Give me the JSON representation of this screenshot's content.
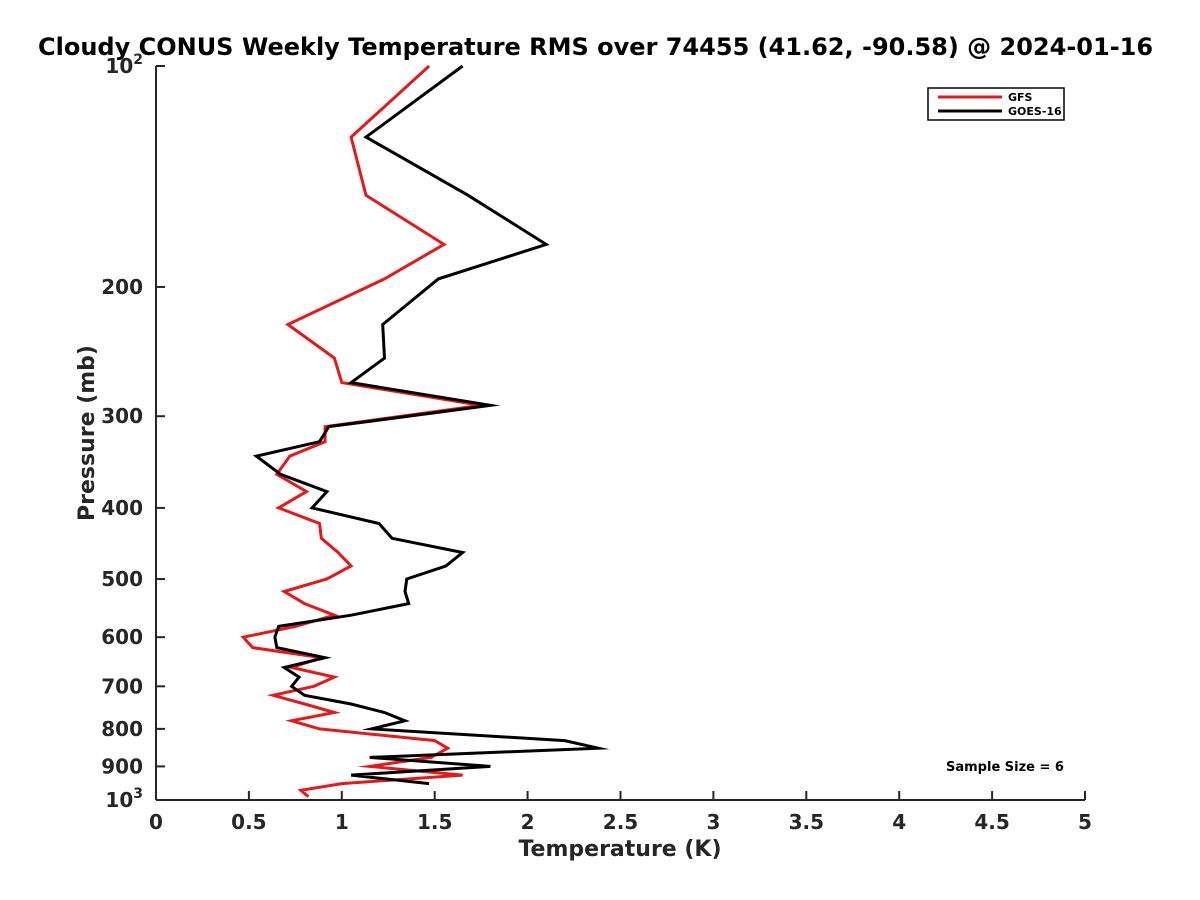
{
  "chart_data": {
    "type": "line",
    "title": "Cloudy CONUS Weekly Temperature RMS over 74455 (41.62, -90.58) @ 2024-01-16",
    "xlabel": "Temperature (K)",
    "ylabel": "Pressure (mb)",
    "xlim": [
      0,
      5
    ],
    "ylim": [
      100,
      1000
    ],
    "yscale": "log",
    "y_reversed": true,
    "grid": false,
    "legend_position": "top-right",
    "x_ticks": [
      {
        "value": 0,
        "label": "0"
      },
      {
        "value": 0.5,
        "label": "0.5"
      },
      {
        "value": 1,
        "label": "1"
      },
      {
        "value": 1.5,
        "label": "1.5"
      },
      {
        "value": 2,
        "label": "2"
      },
      {
        "value": 2.5,
        "label": "2.5"
      },
      {
        "value": 3,
        "label": "3"
      },
      {
        "value": 3.5,
        "label": "3.5"
      },
      {
        "value": 4,
        "label": "4"
      },
      {
        "value": 4.5,
        "label": "4.5"
      },
      {
        "value": 5,
        "label": "5"
      }
    ],
    "y_ticks": [
      {
        "value": 100,
        "base": "10",
        "exp": "2"
      },
      {
        "value": 200,
        "label": "200"
      },
      {
        "value": 300,
        "label": "300"
      },
      {
        "value": 400,
        "label": "400"
      },
      {
        "value": 500,
        "label": "500"
      },
      {
        "value": 600,
        "label": "600"
      },
      {
        "value": 700,
        "label": "700"
      },
      {
        "value": 800,
        "label": "800"
      },
      {
        "value": 900,
        "label": "900"
      },
      {
        "value": 1000,
        "base": "10",
        "exp": "3"
      }
    ],
    "series": [
      {
        "name": "GFS",
        "color": "#e31a1c",
        "points": [
          [
            1.47,
            100
          ],
          [
            1.05,
            125
          ],
          [
            1.13,
            150
          ],
          [
            1.55,
            175
          ],
          [
            1.23,
            195
          ],
          [
            0.71,
            225
          ],
          [
            0.96,
            250
          ],
          [
            1.0,
            270
          ],
          [
            1.75,
            290
          ],
          [
            0.91,
            310
          ],
          [
            0.91,
            325
          ],
          [
            0.72,
            340
          ],
          [
            0.65,
            360
          ],
          [
            0.81,
            380
          ],
          [
            0.66,
            400
          ],
          [
            0.88,
            420
          ],
          [
            0.89,
            440
          ],
          [
            0.98,
            460
          ],
          [
            1.05,
            480
          ],
          [
            0.92,
            500
          ],
          [
            0.69,
            520
          ],
          [
            0.8,
            540
          ],
          [
            0.96,
            560
          ],
          [
            0.75,
            580
          ],
          [
            0.47,
            600
          ],
          [
            0.52,
            620
          ],
          [
            0.89,
            640
          ],
          [
            0.73,
            660
          ],
          [
            0.96,
            680
          ],
          [
            0.85,
            700
          ],
          [
            0.63,
            720
          ],
          [
            0.8,
            740
          ],
          [
            0.96,
            760
          ],
          [
            0.73,
            780
          ],
          [
            0.88,
            800
          ],
          [
            1.5,
            830
          ],
          [
            1.57,
            850
          ],
          [
            1.48,
            875
          ],
          [
            1.15,
            900
          ],
          [
            1.65,
            925
          ],
          [
            1.0,
            950
          ],
          [
            0.78,
            970
          ],
          [
            0.82,
            990
          ]
        ]
      },
      {
        "name": "GOES-16",
        "color": "#000000",
        "points": [
          [
            1.65,
            100
          ],
          [
            1.13,
            125
          ],
          [
            1.68,
            150
          ],
          [
            2.1,
            175
          ],
          [
            1.52,
            195
          ],
          [
            1.22,
            225
          ],
          [
            1.23,
            250
          ],
          [
            1.05,
            270
          ],
          [
            1.8,
            290
          ],
          [
            0.93,
            310
          ],
          [
            0.88,
            325
          ],
          [
            0.54,
            340
          ],
          [
            0.67,
            360
          ],
          [
            0.92,
            380
          ],
          [
            0.84,
            400
          ],
          [
            1.2,
            420
          ],
          [
            1.27,
            440
          ],
          [
            1.65,
            460
          ],
          [
            1.56,
            480
          ],
          [
            1.35,
            500
          ],
          [
            1.34,
            520
          ],
          [
            1.36,
            540
          ],
          [
            1.05,
            560
          ],
          [
            0.66,
            580
          ],
          [
            0.64,
            600
          ],
          [
            0.65,
            620
          ],
          [
            0.91,
            640
          ],
          [
            0.69,
            660
          ],
          [
            0.77,
            680
          ],
          [
            0.73,
            700
          ],
          [
            0.8,
            720
          ],
          [
            1.05,
            740
          ],
          [
            1.23,
            760
          ],
          [
            1.34,
            780
          ],
          [
            1.16,
            800
          ],
          [
            2.2,
            830
          ],
          [
            2.38,
            850
          ],
          [
            1.15,
            875
          ],
          [
            1.8,
            900
          ],
          [
            1.05,
            925
          ],
          [
            1.47,
            950
          ]
        ]
      }
    ],
    "annotations": [
      {
        "text": "Sample Size = 6"
      }
    ]
  }
}
